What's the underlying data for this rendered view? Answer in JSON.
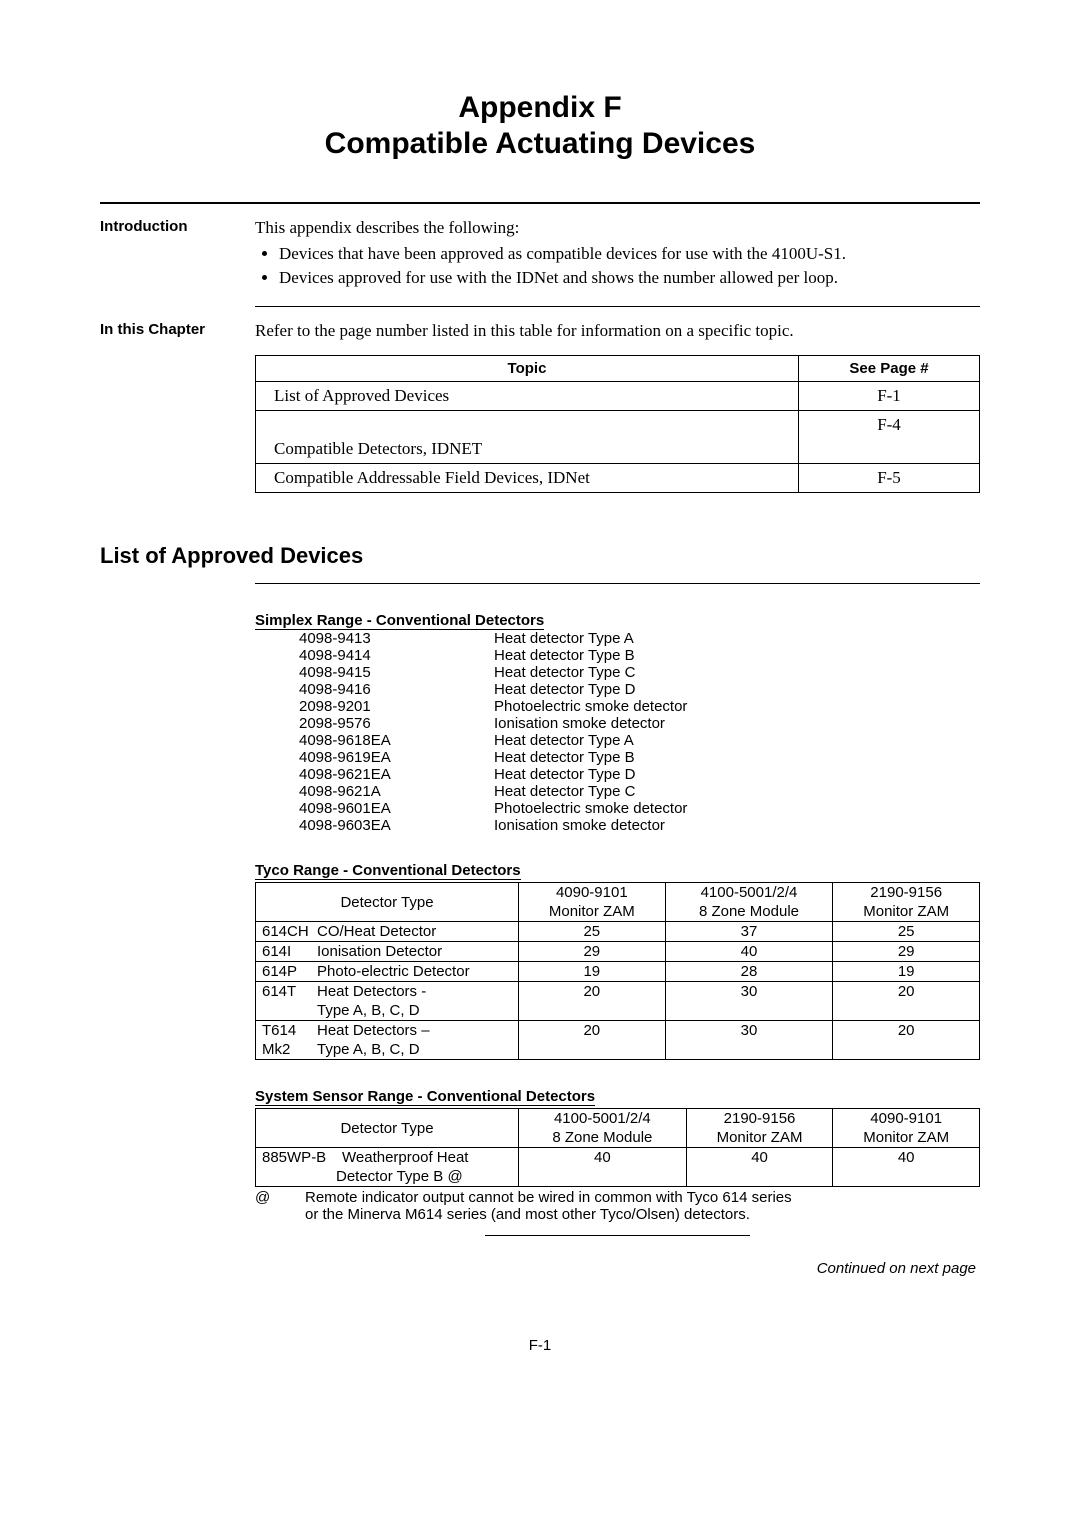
{
  "title_line1": "Appendix F",
  "title_line2": "Compatible Actuating Devices",
  "intro": {
    "label": "Introduction",
    "text": "This appendix describes the following:",
    "bullets": [
      "Devices that have been approved as compatible devices for use with the 4100U-S1.",
      "Devices approved for use with the IDNet and shows the number allowed per loop."
    ]
  },
  "chapter": {
    "label": "In this Chapter",
    "text": "Refer to the page number listed in this table for information on a specific topic.",
    "headers": [
      "Topic",
      "See Page #"
    ],
    "rows": [
      {
        "topic": "List of Approved Devices",
        "page": "F-1",
        "tall": false
      },
      {
        "topic": "Compatible Detectors, IDNET",
        "page": "F-4",
        "tall": true
      },
      {
        "topic": "Compatible Addressable Field Devices, IDNet",
        "page": "F-5",
        "tall": false
      }
    ]
  },
  "heading2": "List of Approved Devices",
  "simplex": {
    "title": "Simplex Range - Conventional Detectors",
    "items": [
      {
        "code": "4098-9413",
        "desc": "Heat detector Type A"
      },
      {
        "code": "4098-9414",
        "desc": "Heat detector Type B"
      },
      {
        "code": "4098-9415",
        "desc": "Heat detector Type C"
      },
      {
        "code": "4098-9416",
        "desc": "Heat detector Type D"
      },
      {
        "code": "2098-9201",
        "desc": "Photoelectric smoke detector"
      },
      {
        "code": "2098-9576",
        "desc": "Ionisation smoke detector"
      },
      {
        "code": "4098-9618EA",
        "desc": "Heat detector Type A"
      },
      {
        "code": "4098-9619EA",
        "desc": "Heat detector Type B"
      },
      {
        "code": "4098-9621EA",
        "desc": "Heat detector Type D"
      },
      {
        "code": "4098-9621A",
        "desc": "Heat detector Type C"
      },
      {
        "code": "4098-9601EA",
        "desc": "Photoelectric smoke detector"
      },
      {
        "code": "4098-9603EA",
        "desc": "Ionisation smoke detector"
      }
    ]
  },
  "tyco": {
    "title": "Tyco Range - Conventional Detectors",
    "head_label": "Detector Type",
    "cols": [
      {
        "l1": "4090-9101",
        "l2": "Monitor ZAM"
      },
      {
        "l1": "4100-5001/2/4",
        "l2": "8 Zone Module"
      },
      {
        "l1": "2190-9156",
        "l2": "Monitor ZAM"
      }
    ],
    "rows_simple": [
      {
        "code": "614CH",
        "name": "CO/Heat Detector",
        "v": [
          "25",
          "37",
          "25"
        ]
      },
      {
        "code": "614I",
        "name": "Ionisation Detector",
        "v": [
          "29",
          "40",
          "29"
        ]
      },
      {
        "code": "614P",
        "name": "Photo-electric Detector",
        "v": [
          "19",
          "28",
          "19"
        ]
      }
    ],
    "rows_multi": [
      {
        "code": "614T",
        "name1": "Heat Detectors -",
        "name2": "Type A, B, C, D",
        "v": [
          "20",
          "30",
          "20"
        ]
      },
      {
        "code": "T614 Mk2",
        "code1": "T614",
        "code2": "Mk2",
        "name1": "Heat Detectors –",
        "name2": "Type A, B, C, D",
        "v": [
          "20",
          "30",
          "20"
        ]
      }
    ]
  },
  "sensor": {
    "title": "System Sensor Range - Conventional Detectors",
    "head_label": "Detector Type",
    "cols": [
      {
        "l1": "4100-5001/2/4",
        "l2": "8 Zone Module"
      },
      {
        "l1": "2190-9156",
        "l2": "Monitor ZAM"
      },
      {
        "l1": "4090-9101",
        "l2": "Monitor ZAM"
      }
    ],
    "row": {
      "code": "885WP-B",
      "name1": "Weatherproof Heat",
      "name2": "Detector Type B @",
      "v": [
        "40",
        "40",
        "40"
      ]
    },
    "footnote_sym": "@",
    "footnote_text1": "Remote indicator output cannot be wired in common with Tyco 614 series",
    "footnote_text2": "or the Minerva M614 series (and most other Tyco/Olsen) detectors."
  },
  "continued": "Continued on next page",
  "page_number": "F-1"
}
